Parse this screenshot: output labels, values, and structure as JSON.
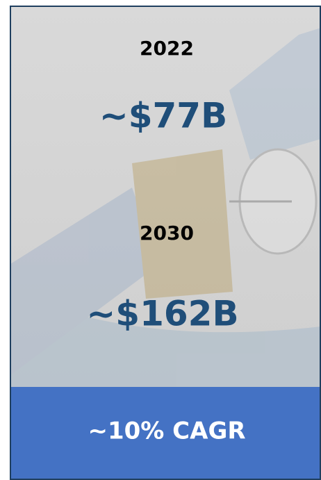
{
  "stats": [
    {
      "year": "2022",
      "value": "~$77B"
    },
    {
      "year": "2030",
      "value": "~$162B"
    }
  ],
  "footer": "~10% CAGR"
}
